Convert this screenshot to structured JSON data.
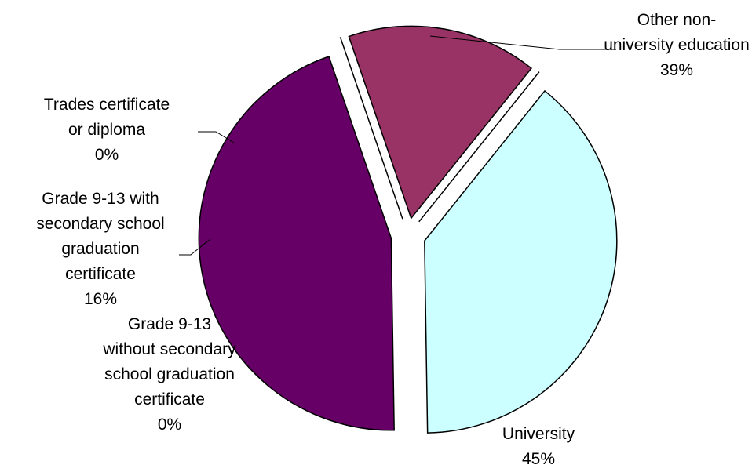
{
  "chart_data": {
    "type": "pie",
    "slices": [
      {
        "key": "other",
        "label_lines": [
          "Other non-",
          "university education"
        ],
        "percent_label": "39%",
        "value": 39,
        "color": "#CCFFFF"
      },
      {
        "key": "university",
        "label_lines": [
          "University"
        ],
        "percent_label": "45%",
        "value": 45,
        "color": "#660066"
      },
      {
        "key": "grade-without",
        "label_lines": [
          "Grade 9-13",
          "without secondary",
          "school graduation",
          "certificate"
        ],
        "percent_label": "0%",
        "value": 0,
        "color": "#8080FF"
      },
      {
        "key": "grade-with",
        "label_lines": [
          "Grade 9-13 with",
          "secondary school",
          "graduation",
          "certificate"
        ],
        "percent_label": "16%",
        "value": 16,
        "color": "#993366"
      },
      {
        "key": "trades",
        "label_lines": [
          "Trades certificate",
          "or diploma"
        ],
        "percent_label": "0%",
        "value": 0,
        "color": "#FFFFCC"
      }
    ],
    "exploded": true,
    "legend": "none"
  }
}
